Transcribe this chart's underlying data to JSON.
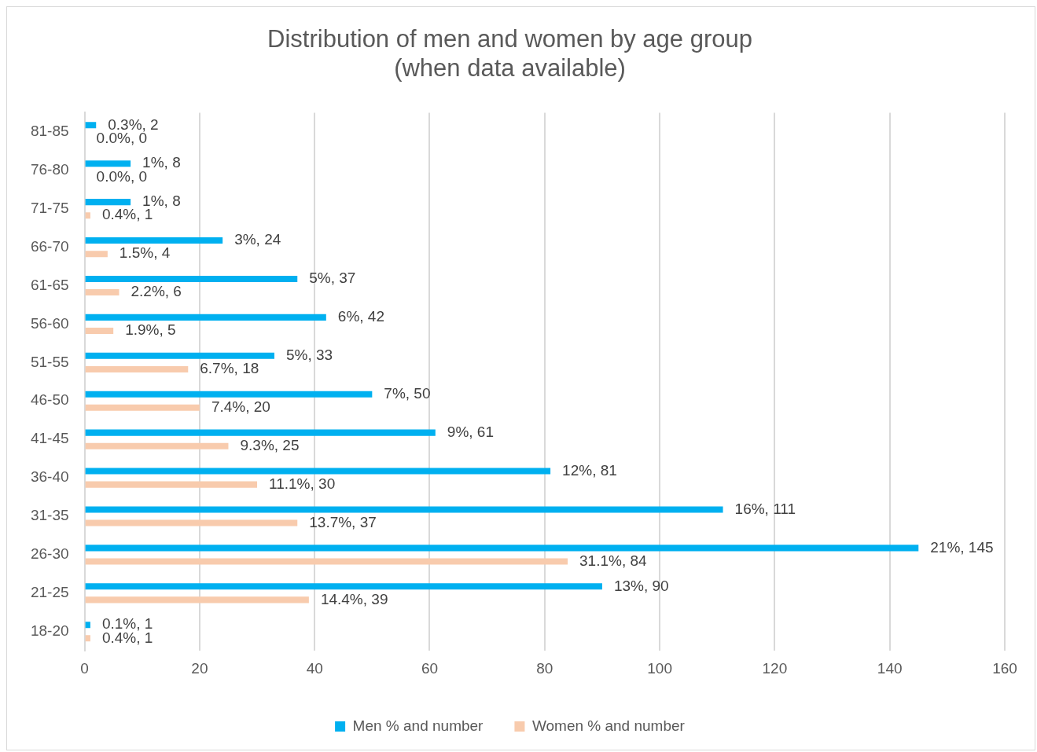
{
  "chart_data": {
    "type": "bar",
    "orientation": "horizontal",
    "title": "Distribution of men and women by age group\n(when data available)",
    "categories": [
      "81-85",
      "76-80",
      "71-75",
      "66-70",
      "61-65",
      "56-60",
      "51-55",
      "46-50",
      "41-45",
      "36-40",
      "31-35",
      "26-30",
      "21-25",
      "18-20"
    ],
    "series": [
      {
        "name": "Men % and number",
        "color": "#00b0f0",
        "values": [
          2,
          8,
          8,
          24,
          37,
          42,
          33,
          50,
          61,
          81,
          111,
          145,
          90,
          1
        ],
        "value_labels": [
          "0.3%, 2",
          "1%, 8",
          "1%, 8",
          "3%, 24",
          "5%, 37",
          "6%, 42",
          "5%, 33",
          "7%, 50",
          "9%, 61",
          "12%, 81",
          "16%, 111",
          "21%, 145",
          "13%, 90",
          "0.1%, 1"
        ]
      },
      {
        "name": "Women % and number",
        "color": "#f8cbad",
        "values": [
          0,
          0,
          1,
          4,
          6,
          5,
          18,
          20,
          25,
          30,
          37,
          84,
          39,
          1
        ],
        "value_labels": [
          "0.0%, 0",
          "0.0%, 0",
          "0.4%, 1",
          "1.5%, 4",
          "2.2%, 6",
          "1.9%, 5",
          "6.7%, 18",
          "7.4%, 20",
          "9.3%, 25",
          "11.1%, 30",
          "13.7%, 37",
          "31.1%, 84",
          "14.4%, 39",
          "0.4%, 1"
        ]
      }
    ],
    "xlim": [
      0,
      160
    ],
    "xticks": [
      0,
      20,
      40,
      60,
      80,
      100,
      120,
      140,
      160
    ],
    "grid": "x",
    "legend": "bottom"
  }
}
